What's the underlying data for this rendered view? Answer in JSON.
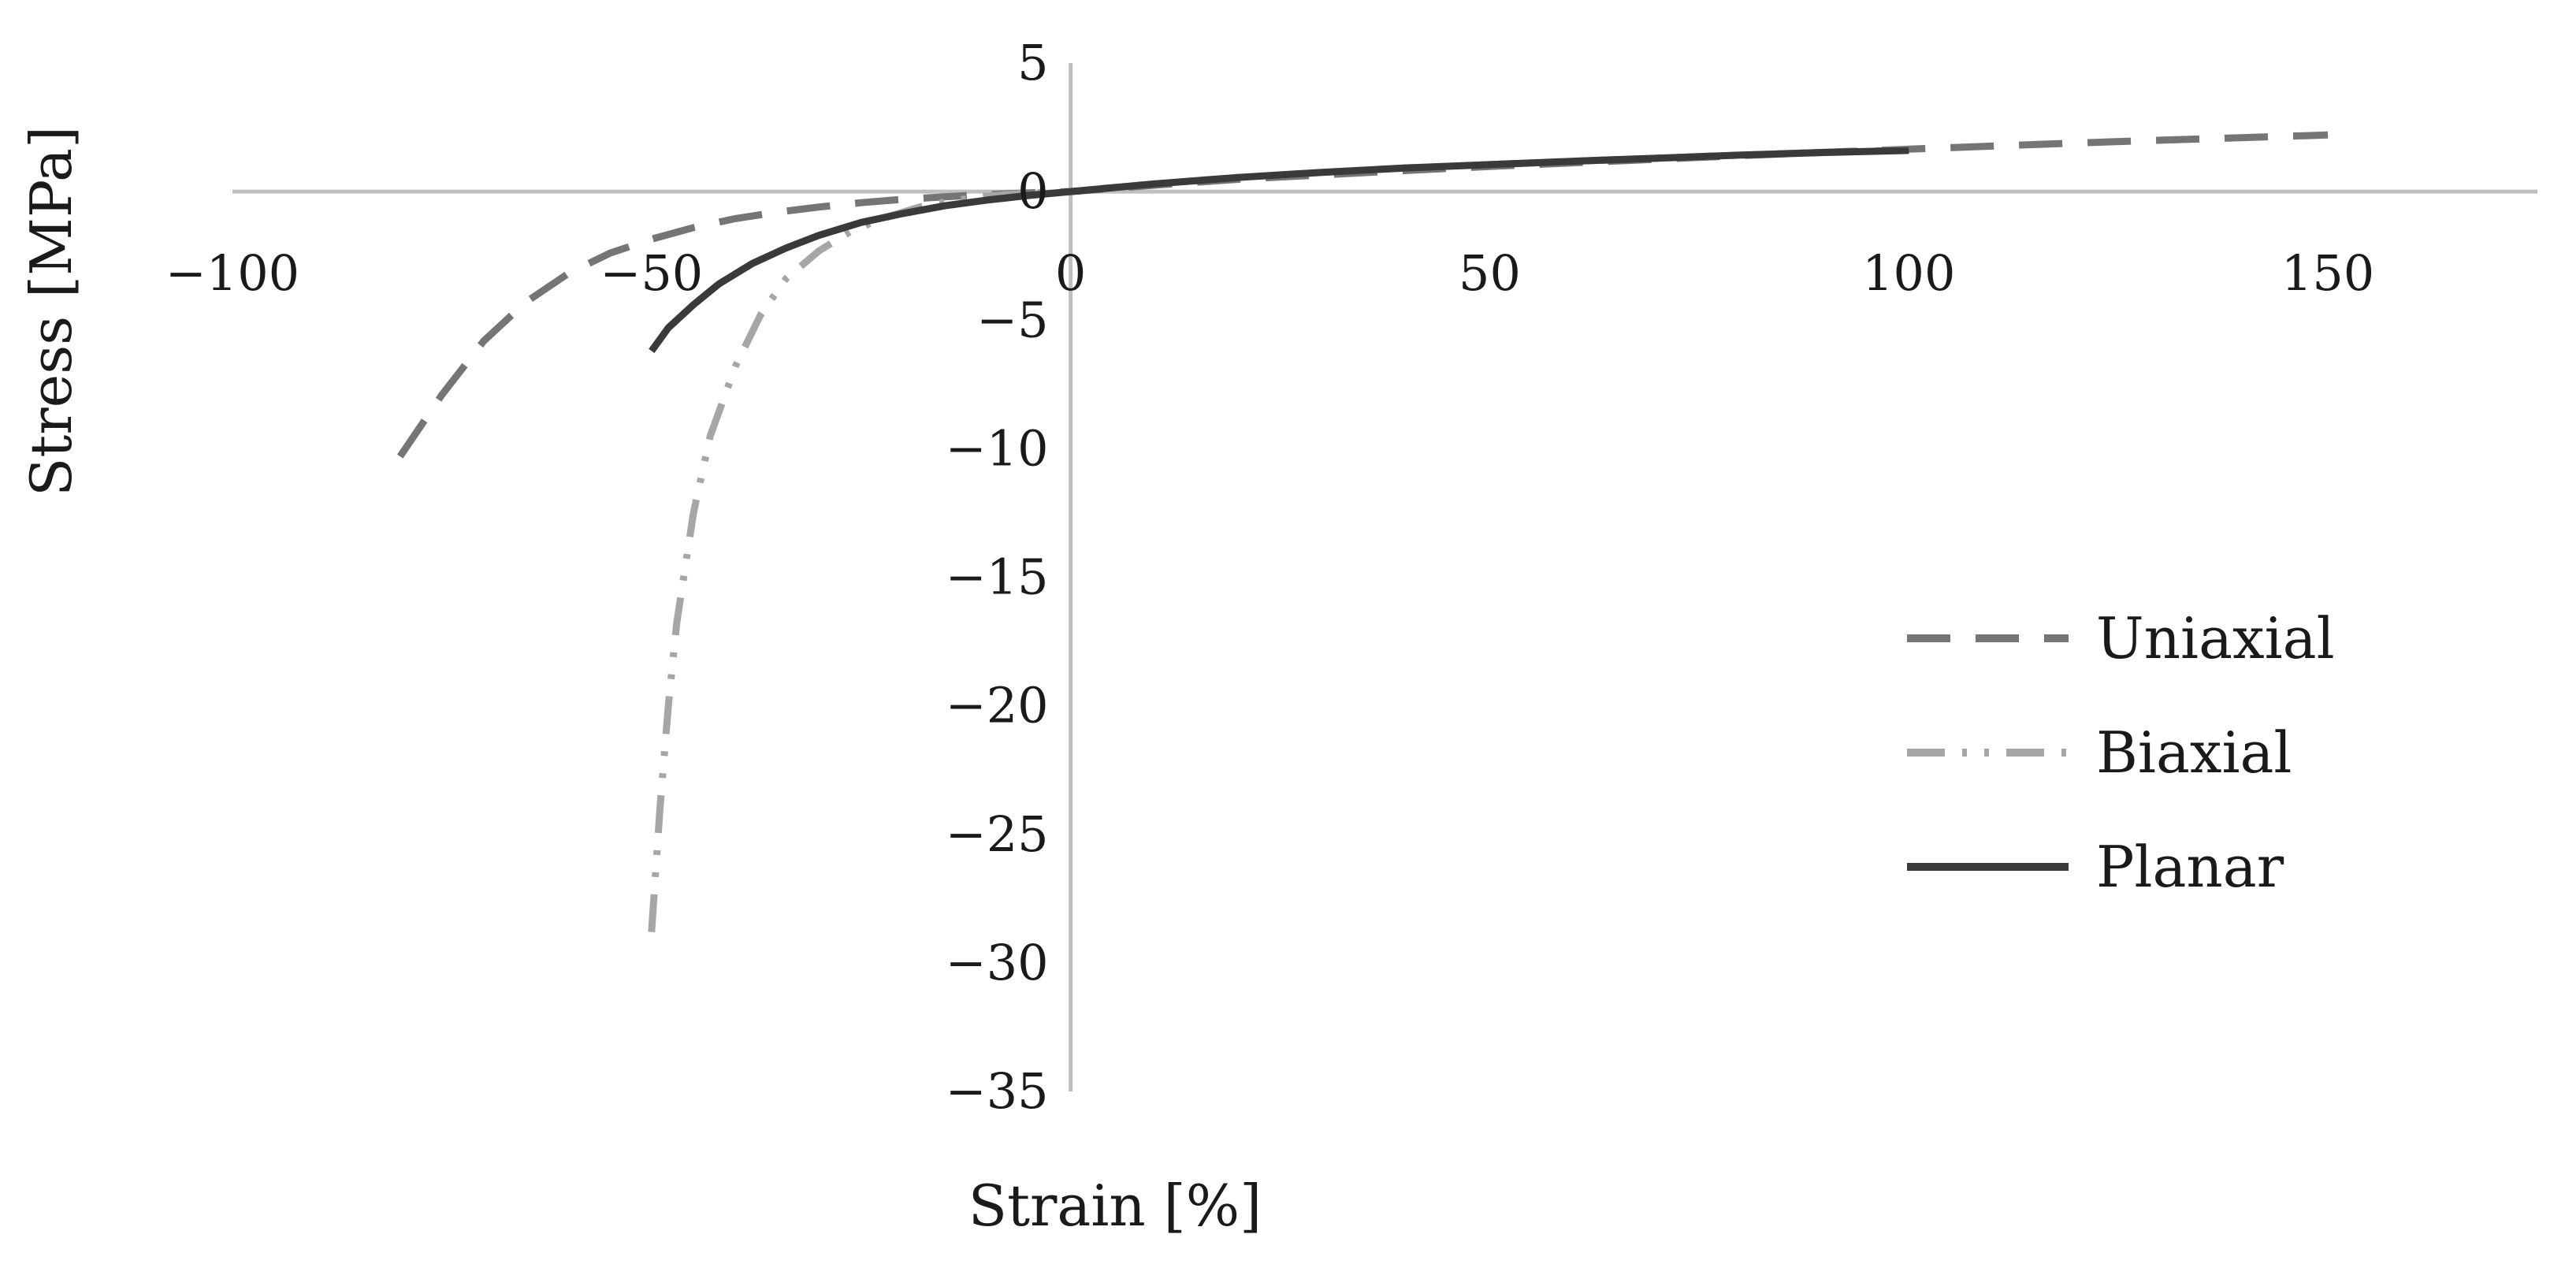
{
  "chart_data": {
    "type": "line",
    "title": "",
    "xlabel": "Strain [%]",
    "ylabel": "Stress [MPa]",
    "xlim": [
      -100,
      175
    ],
    "ylim": [
      -35,
      5
    ],
    "x_ticks": [
      -100,
      -50,
      0,
      50,
      100,
      150
    ],
    "x_tick_labels": [
      "−100",
      "−50",
      "0",
      "50",
      "100",
      "150"
    ],
    "y_ticks": [
      5,
      0,
      -5,
      -10,
      -15,
      -20,
      -25,
      -30,
      -35
    ],
    "y_tick_labels": [
      "5",
      "0",
      "−5",
      "−10",
      "−15",
      "−20",
      "−25",
      "−30",
      "−35"
    ],
    "grid": false,
    "legend_position": "right",
    "series": [
      {
        "name": "Uniaxial",
        "color": "#757575",
        "style": "dashed",
        "points": [
          [
            -80,
            -10.3
          ],
          [
            -75,
            -7.9
          ],
          [
            -70,
            -5.8
          ],
          [
            -65,
            -4.3
          ],
          [
            -60,
            -3.2
          ],
          [
            -55,
            -2.4
          ],
          [
            -50,
            -1.85
          ],
          [
            -45,
            -1.4
          ],
          [
            -40,
            -1.05
          ],
          [
            -35,
            -0.8
          ],
          [
            -30,
            -0.6
          ],
          [
            -25,
            -0.43
          ],
          [
            -20,
            -0.3
          ],
          [
            -15,
            -0.2
          ],
          [
            -10,
            -0.12
          ],
          [
            -5,
            -0.05
          ],
          [
            0,
            0
          ],
          [
            10,
            0.25
          ],
          [
            20,
            0.48
          ],
          [
            30,
            0.65
          ],
          [
            40,
            0.82
          ],
          [
            50,
            0.98
          ],
          [
            60,
            1.12
          ],
          [
            70,
            1.26
          ],
          [
            80,
            1.4
          ],
          [
            90,
            1.53
          ],
          [
            100,
            1.65
          ],
          [
            110,
            1.77
          ],
          [
            120,
            1.89
          ],
          [
            130,
            2.0
          ],
          [
            140,
            2.1
          ],
          [
            150,
            2.2
          ]
        ]
      },
      {
        "name": "Biaxial",
        "color": "#a6a6a6",
        "style": "dash-dot-dot",
        "points": [
          [
            -50,
            -28.8
          ],
          [
            -49,
            -24.0
          ],
          [
            -48,
            -20.0
          ],
          [
            -47,
            -16.8
          ],
          [
            -45,
            -12.5
          ],
          [
            -43,
            -9.5
          ],
          [
            -40,
            -6.8
          ],
          [
            -37,
            -4.8
          ],
          [
            -34,
            -3.4
          ],
          [
            -30,
            -2.3
          ],
          [
            -26,
            -1.5
          ],
          [
            -22,
            -1.0
          ],
          [
            -18,
            -0.6
          ],
          [
            -14,
            -0.35
          ],
          [
            -10,
            -0.18
          ],
          [
            -6,
            -0.08
          ],
          [
            -3,
            -0.03
          ],
          [
            0,
            0
          ],
          [
            10,
            0.3
          ],
          [
            20,
            0.55
          ],
          [
            30,
            0.75
          ],
          [
            40,
            0.92
          ],
          [
            50,
            1.05
          ],
          [
            60,
            1.18
          ],
          [
            70,
            1.3
          ],
          [
            80,
            1.42
          ],
          [
            90,
            1.53
          ],
          [
            100,
            1.62
          ]
        ]
      },
      {
        "name": "Planar",
        "color": "#3a3a3a",
        "style": "solid",
        "points": [
          [
            -50,
            -6.2
          ],
          [
            -48,
            -5.3
          ],
          [
            -45,
            -4.4
          ],
          [
            -42,
            -3.6
          ],
          [
            -38,
            -2.8
          ],
          [
            -34,
            -2.2
          ],
          [
            -30,
            -1.7
          ],
          [
            -25,
            -1.2
          ],
          [
            -20,
            -0.85
          ],
          [
            -15,
            -0.55
          ],
          [
            -10,
            -0.33
          ],
          [
            -5,
            -0.15
          ],
          [
            0,
            0
          ],
          [
            10,
            0.3
          ],
          [
            20,
            0.55
          ],
          [
            30,
            0.75
          ],
          [
            40,
            0.92
          ],
          [
            50,
            1.05
          ],
          [
            60,
            1.18
          ],
          [
            70,
            1.3
          ],
          [
            80,
            1.42
          ],
          [
            90,
            1.52
          ],
          [
            100,
            1.6
          ]
        ]
      }
    ]
  }
}
